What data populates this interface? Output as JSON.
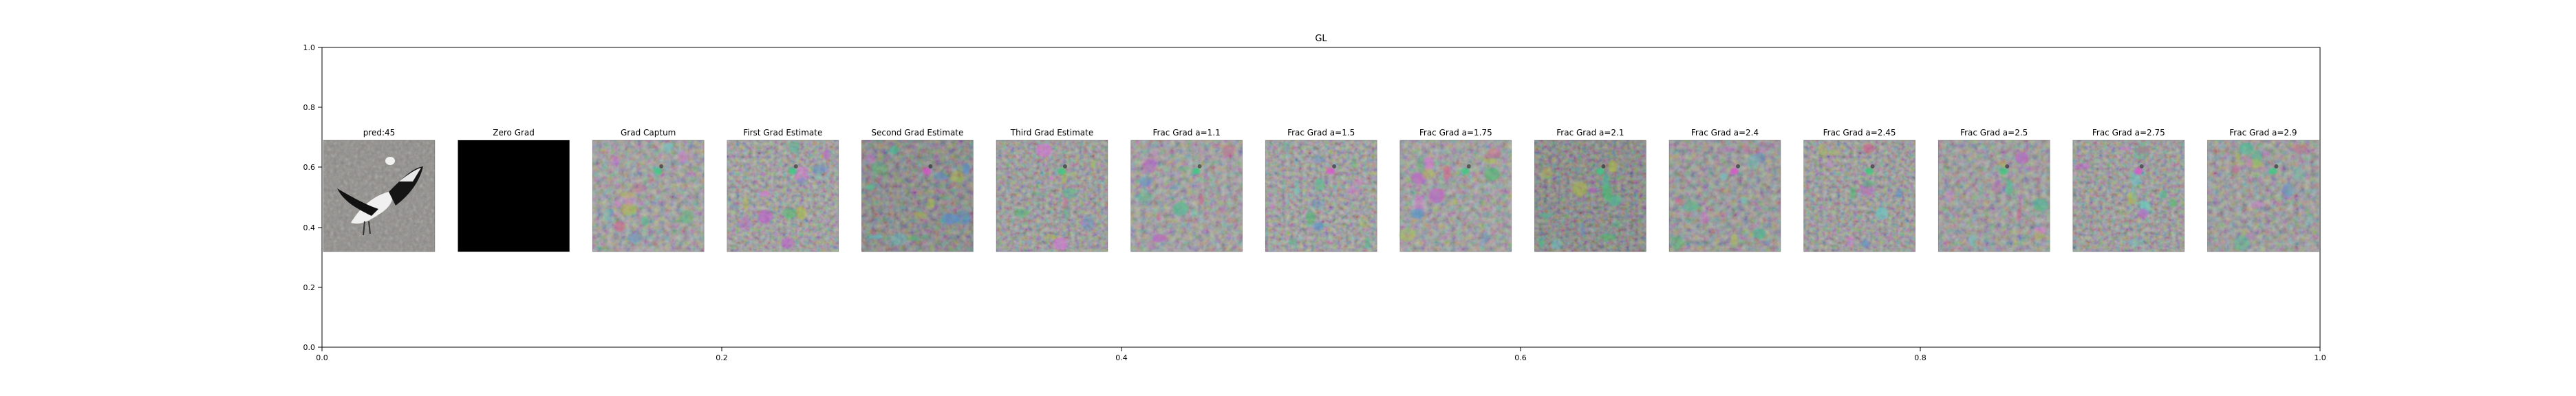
{
  "chart_data": {
    "type": "image-grid",
    "title": "GL",
    "xlabel": "",
    "ylabel": "",
    "xlim": [
      0.0,
      1.0
    ],
    "ylim": [
      0.0,
      1.0
    ],
    "x_ticks": [
      "0.0",
      "0.2",
      "0.4",
      "0.6",
      "0.8",
      "1.0"
    ],
    "y_ticks": [
      "0.0",
      "0.2",
      "0.4",
      "0.6",
      "0.8",
      "1.0"
    ],
    "grid": false,
    "panels": [
      {
        "title": "pred:45",
        "kind": "photo"
      },
      {
        "title": "Zero Grad",
        "kind": "black"
      },
      {
        "title": "Grad Captum",
        "kind": "noise",
        "tone": "#8f8f8f"
      },
      {
        "title": "First Grad Estimate",
        "kind": "noise",
        "tone": "#8f8f8f"
      },
      {
        "title": "Second Grad Estimate",
        "kind": "noise",
        "tone": "#6e6e6e"
      },
      {
        "title": "Third Grad Estimate",
        "kind": "noise",
        "tone": "#8a8a8a"
      },
      {
        "title": "Frac Grad a=1.1",
        "kind": "noise",
        "tone": "#8f8f8f"
      },
      {
        "title": "Frac Grad a=1.5",
        "kind": "noise",
        "tone": "#8f8f8f"
      },
      {
        "title": "Frac Grad a=1.75",
        "kind": "noise",
        "tone": "#8f8f8f"
      },
      {
        "title": "Frac Grad a=2.1",
        "kind": "noise",
        "tone": "#6e6e6e"
      },
      {
        "title": "Frac Grad a=2.4",
        "kind": "noise",
        "tone": "#858585"
      },
      {
        "title": "Frac Grad a=2.45",
        "kind": "noise",
        "tone": "#8a8a8a"
      },
      {
        "title": "Frac Grad a=2.5",
        "kind": "noise",
        "tone": "#8a8a8a"
      },
      {
        "title": "Frac Grad a=2.75",
        "kind": "noise",
        "tone": "#8a8a8a"
      },
      {
        "title": "Frac Grad a=2.9",
        "kind": "noise",
        "tone": "#8a8a8a"
      }
    ]
  }
}
